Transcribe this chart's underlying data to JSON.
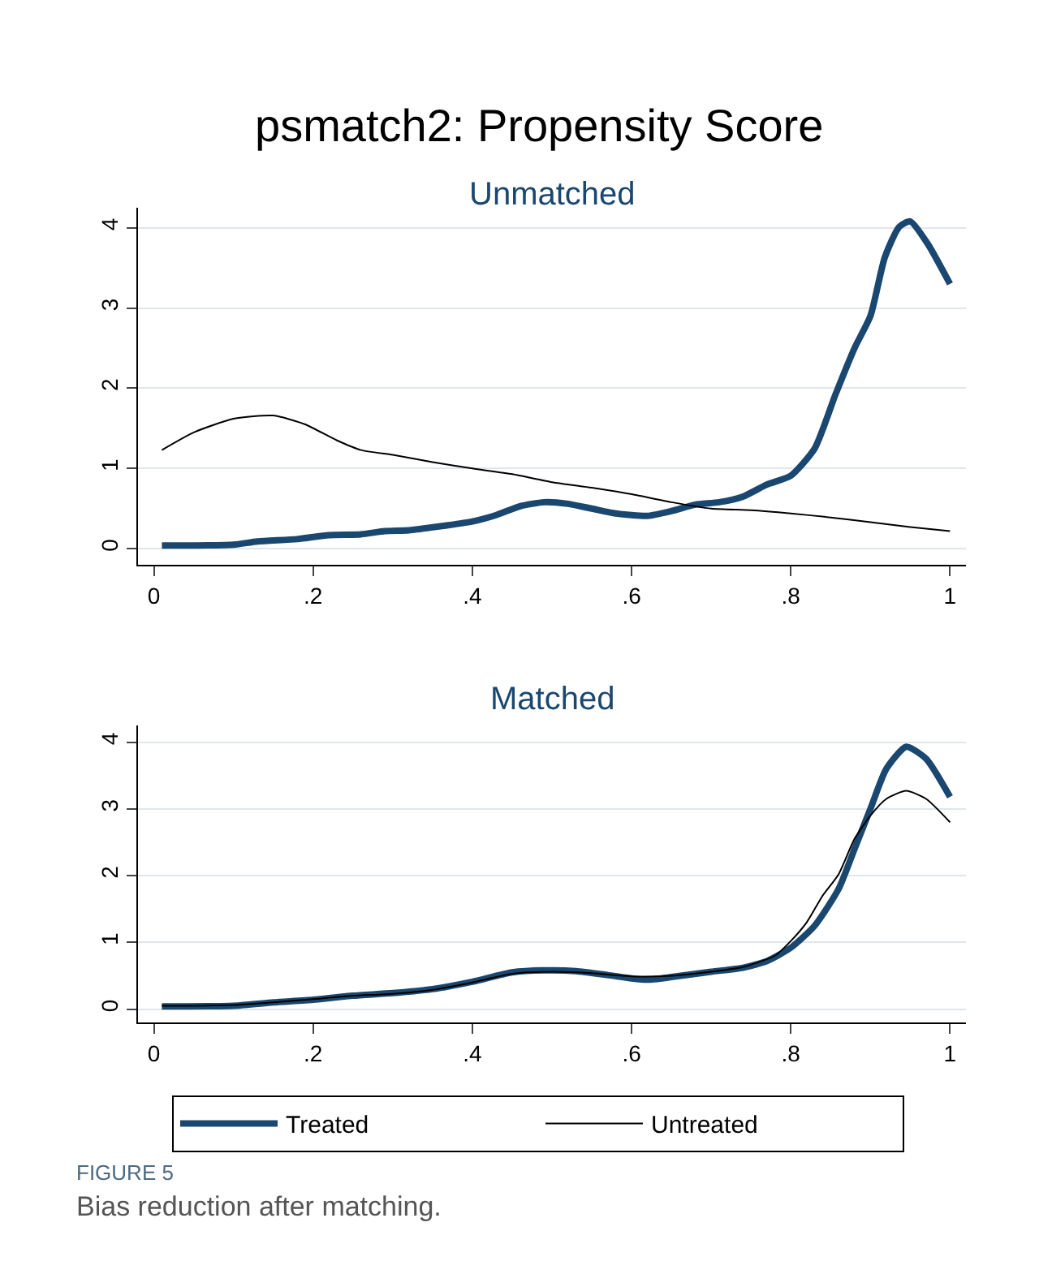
{
  "chart_data": [
    {
      "type": "line",
      "title": "psmatch2: Propensity Score",
      "subtitle": "Unmatched",
      "xlim": [
        -0.02,
        1.02
      ],
      "ylim": [
        -0.2,
        4.25
      ],
      "xticks": [
        0,
        {
          "value": 0.2,
          "label": ".2"
        },
        {
          "value": 0.4,
          "label": ".4"
        },
        {
          "value": 0.6,
          "label": ".6"
        },
        {
          "value": 0.8,
          "label": ".8"
        },
        1
      ],
      "yticks": [
        0,
        1,
        2,
        3,
        4
      ],
      "grid": "y",
      "legend": "bottom",
      "line_style": "solid",
      "marker": "none",
      "series": [
        {
          "name": "Treated",
          "color": "#1a476f",
          "x": [
            0.01,
            0.05,
            0.1,
            0.13,
            0.18,
            0.22,
            0.26,
            0.29,
            0.32,
            0.36,
            0.4,
            0.43,
            0.46,
            0.49,
            0.52,
            0.55,
            0.58,
            0.62,
            0.65,
            0.68,
            0.71,
            0.74,
            0.77,
            0.8,
            0.83,
            0.856,
            0.88,
            0.9,
            0.918,
            0.936,
            0.95,
            0.972,
            1.0
          ],
          "values": [
            0.04,
            0.04,
            0.05,
            0.09,
            0.12,
            0.17,
            0.18,
            0.22,
            0.23,
            0.28,
            0.34,
            0.42,
            0.53,
            0.58,
            0.56,
            0.5,
            0.44,
            0.41,
            0.47,
            0.55,
            0.58,
            0.65,
            0.8,
            0.91,
            1.25,
            1.92,
            2.5,
            2.9,
            3.63,
            4.01,
            4.08,
            3.8,
            3.3
          ]
        },
        {
          "name": "Untreated",
          "color": "#000000",
          "x": [
            0.01,
            0.05,
            0.1,
            0.15,
            0.19,
            0.23,
            0.26,
            0.3,
            0.35,
            0.4,
            0.45,
            0.5,
            0.55,
            0.6,
            0.65,
            0.7,
            0.75,
            0.8,
            0.85,
            0.9,
            0.95,
            1.0
          ],
          "values": [
            1.23,
            1.45,
            1.62,
            1.66,
            1.55,
            1.35,
            1.23,
            1.17,
            1.08,
            1.0,
            0.93,
            0.83,
            0.76,
            0.68,
            0.58,
            0.5,
            0.48,
            0.44,
            0.39,
            0.33,
            0.27,
            0.22
          ]
        }
      ]
    },
    {
      "type": "line",
      "title": "Matched",
      "xlim": [
        -0.02,
        1.02
      ],
      "ylim": [
        -0.2,
        4.25
      ],
      "xticks": [
        0,
        {
          "value": 0.2,
          "label": ".2"
        },
        {
          "value": 0.4,
          "label": ".4"
        },
        {
          "value": 0.6,
          "label": ".6"
        },
        {
          "value": 0.8,
          "label": ".8"
        },
        1
      ],
      "yticks": [
        0,
        1,
        2,
        3,
        4
      ],
      "grid": "y",
      "line_style": "solid",
      "marker": "none",
      "annotations": [
        "FIGURE 5",
        "Bias reduction after matching."
      ],
      "series": [
        {
          "color": "#1a476f",
          "x": [
            0.01,
            0.1,
            0.15,
            0.2,
            0.25,
            0.3,
            0.35,
            0.4,
            0.45,
            0.49,
            0.53,
            0.57,
            0.6,
            0.62,
            0.65,
            0.7,
            0.74,
            0.77,
            0.8,
            0.83,
            0.86,
            0.88,
            0.9,
            0.92,
            0.945,
            0.97,
            1.0
          ],
          "values": [
            0.04,
            0.05,
            0.1,
            0.14,
            0.2,
            0.24,
            0.3,
            0.41,
            0.55,
            0.58,
            0.57,
            0.51,
            0.46,
            0.44,
            0.48,
            0.56,
            0.62,
            0.72,
            0.92,
            1.25,
            1.8,
            2.4,
            3.0,
            3.6,
            3.93,
            3.75,
            3.18
          ]
        },
        {
          "color": "#000000",
          "x": [
            0.01,
            0.1,
            0.15,
            0.2,
            0.25,
            0.3,
            0.35,
            0.4,
            0.45,
            0.5,
            0.55,
            0.6,
            0.65,
            0.7,
            0.74,
            0.78,
            0.8,
            0.82,
            0.84,
            0.86,
            0.88,
            0.9,
            0.92,
            0.945,
            0.97,
            1.0
          ],
          "values": [
            0.05,
            0.06,
            0.1,
            0.15,
            0.2,
            0.23,
            0.29,
            0.4,
            0.53,
            0.56,
            0.54,
            0.49,
            0.5,
            0.56,
            0.63,
            0.8,
            1.02,
            1.3,
            1.7,
            2.02,
            2.55,
            2.9,
            3.15,
            3.27,
            3.15,
            2.8
          ]
        }
      ]
    }
  ]
}
